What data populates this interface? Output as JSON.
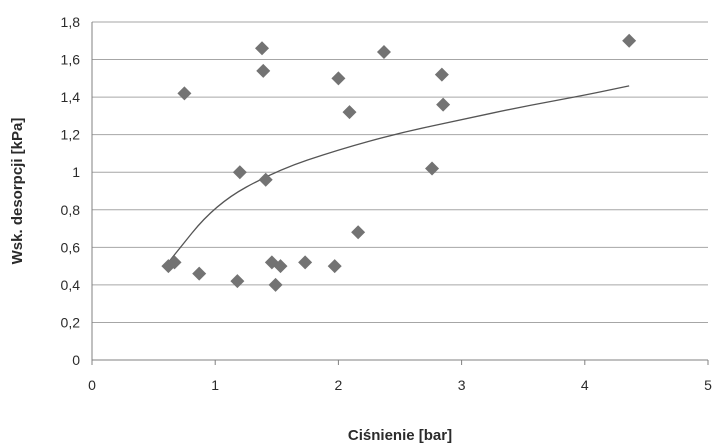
{
  "chart_data": {
    "type": "scatter",
    "xlabel": "Ciśnienie [bar]",
    "ylabel": "Wsk. desorpcji [kPa]",
    "xlim": [
      0,
      5
    ],
    "ylim": [
      0,
      1.8
    ],
    "x_ticks": [
      "0",
      "1",
      "2",
      "3",
      "4",
      "5"
    ],
    "y_ticks": [
      "0",
      "0,2",
      "0,4",
      "0,6",
      "0,8",
      "1",
      "1,2",
      "1,4",
      "1,6",
      "1,8"
    ],
    "grid": "horizontal",
    "legend": "none",
    "marker": "diamond",
    "colors": {
      "marker": "#737373",
      "trend": "#555555",
      "grid": "#a6a6a6",
      "axis": "#808080"
    },
    "series": [
      {
        "points": [
          {
            "x": 0.62,
            "y": 0.5
          },
          {
            "x": 0.67,
            "y": 0.52
          },
          {
            "x": 0.75,
            "y": 1.42
          },
          {
            "x": 0.87,
            "y": 0.46
          },
          {
            "x": 1.18,
            "y": 0.42
          },
          {
            "x": 1.2,
            "y": 1.0
          },
          {
            "x": 1.38,
            "y": 1.66
          },
          {
            "x": 1.39,
            "y": 1.54
          },
          {
            "x": 1.41,
            "y": 0.96
          },
          {
            "x": 1.46,
            "y": 0.52
          },
          {
            "x": 1.49,
            "y": 0.4
          },
          {
            "x": 1.53,
            "y": 0.5
          },
          {
            "x": 1.73,
            "y": 0.52
          },
          {
            "x": 1.97,
            "y": 0.5
          },
          {
            "x": 2.0,
            "y": 1.5
          },
          {
            "x": 2.09,
            "y": 1.32
          },
          {
            "x": 2.16,
            "y": 0.68
          },
          {
            "x": 2.37,
            "y": 1.64
          },
          {
            "x": 2.76,
            "y": 1.02
          },
          {
            "x": 2.84,
            "y": 1.52
          },
          {
            "x": 2.85,
            "y": 1.36
          },
          {
            "x": 4.36,
            "y": 1.7
          }
        ]
      }
    ],
    "trendline": {
      "type": "logarithmic",
      "points": [
        {
          "x": 0.62,
          "y": 0.52
        },
        {
          "x": 1.0,
          "y": 0.83
        },
        {
          "x": 1.5,
          "y": 1.01
        },
        {
          "x": 2.0,
          "y": 1.12
        },
        {
          "x": 2.5,
          "y": 1.21
        },
        {
          "x": 3.0,
          "y": 1.28
        },
        {
          "x": 3.5,
          "y": 1.35
        },
        {
          "x": 4.0,
          "y": 1.41
        },
        {
          "x": 4.36,
          "y": 1.46
        }
      ]
    }
  }
}
